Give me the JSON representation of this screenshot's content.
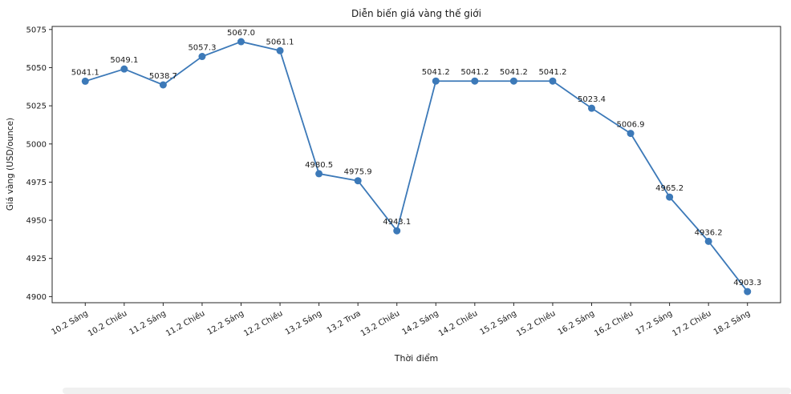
{
  "title": "Diễn biến giá vàng thế giới",
  "chart_data": {
    "type": "line",
    "title": "Diễn biến giá vàng thế giới",
    "xlabel": "Thời điểm",
    "ylabel": "Giá vàng (USD/ounce)",
    "categories": [
      "10.2 Sáng",
      "10.2 Chiều",
      "11.2 Sáng",
      "11.2 Chiều",
      "12.2 Sáng",
      "12.2 Chiều",
      "13.2 Sáng",
      "13.2 Trưa",
      "13.2 Chiều",
      "14.2 Sáng",
      "14.2 Chiều",
      "15.2 Sáng",
      "15.2 Chiều",
      "16.2 Sáng",
      "16.2 Chiều",
      "17.2 Sáng",
      "17.2 Chiều",
      "18.2 Sáng"
    ],
    "values": [
      5041.1,
      5049.1,
      5038.7,
      5057.3,
      5067.0,
      5061.1,
      4980.5,
      4975.9,
      4943.1,
      5041.2,
      5041.2,
      5041.2,
      5041.2,
      5023.4,
      5006.9,
      4965.2,
      4936.2,
      4903.3
    ],
    "point_labels": [
      "5041.1",
      "5049.1",
      "5038.7",
      "5057.3",
      "5067.0",
      "5061.1",
      "4980.5",
      "4975.9",
      "4943.1",
      "5041.2",
      "5041.2",
      "5041.2",
      "5041.2",
      "5023.4",
      "5006.9",
      "4965.2",
      "4936.2",
      "4903.3"
    ],
    "yticks": [
      4900,
      4925,
      4950,
      4975,
      5000,
      5025,
      5050,
      5075
    ],
    "ylim": [
      4896,
      5077
    ],
    "grid": false,
    "legend": "none",
    "line_color": "#3c79b8",
    "marker_color": "#3c79b8",
    "spine_color": "#262626",
    "text_color": "#1a1a1a"
  }
}
